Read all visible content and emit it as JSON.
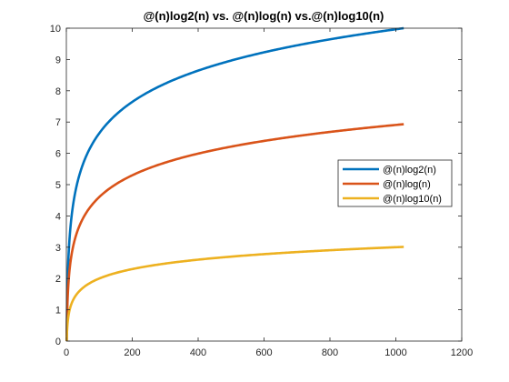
{
  "chart_data": {
    "type": "line",
    "title": "@(n)log2(n) vs. @(n)log(n) vs.@(n)log10(n)",
    "xlabel": "",
    "ylabel": "",
    "xlim": [
      0,
      1200
    ],
    "ylim": [
      0,
      10
    ],
    "x_ticks": [
      0,
      200,
      400,
      600,
      800,
      1000,
      1200
    ],
    "y_ticks": [
      0,
      1,
      2,
      3,
      4,
      5,
      6,
      7,
      8,
      9,
      10
    ],
    "x_domain": [
      1,
      1024
    ],
    "grid": false,
    "legend_position": "right",
    "series": [
      {
        "name": "@(n)log2(n)",
        "function": "log2",
        "color": "#0072BD"
      },
      {
        "name": "@(n)log(n)",
        "function": "ln",
        "color": "#D95319"
      },
      {
        "name": "@(n)log10(n)",
        "function": "log10",
        "color": "#EDB120"
      }
    ]
  }
}
